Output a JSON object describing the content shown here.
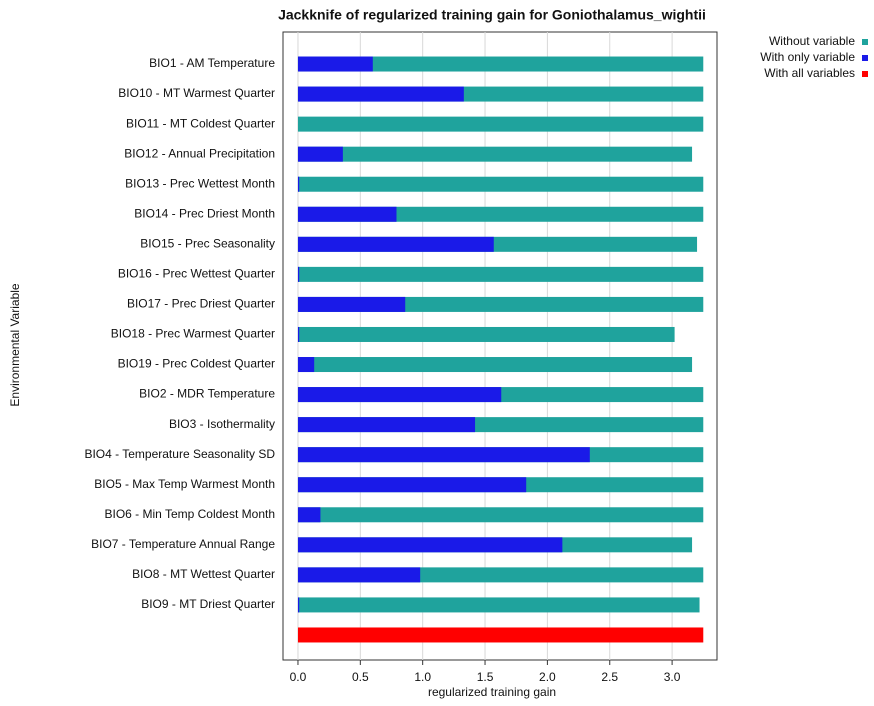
{
  "chart_data": {
    "type": "bar",
    "orientation": "horizontal",
    "title": "Jackknife of regularized training gain for Goniothalamus_wightii",
    "x_label": "regularized training gain",
    "y_label": "Environmental Variable",
    "categories": [
      "BIO1 - AM Temperature",
      "BIO10 - MT Warmest Quarter",
      "BIO11 - MT Coldest Quarter",
      "BIO12 - Annual Precipitation",
      "BIO13 - Prec Wettest Month",
      "BIO14 - Prec Driest Month",
      "BIO15 - Prec Seasonality",
      "BIO16 - Prec Wettest Quarter",
      "BIO17 - Prec Driest Quarter",
      "BIO18 - Prec Warmest Quarter",
      "BIO19 - Prec Coldest Quarter",
      "BIO2 - MDR Temperature",
      "BIO3 - Isothermality",
      "BIO4 - Temperature Seasonality SD",
      "BIO5 - Max Temp Warmest Month",
      "BIO6 - Min Temp Coldest Month",
      "BIO7 - Temperature Annual Range",
      "BIO8 - MT Wettest Quarter",
      "BIO9 - MT Driest Quarter",
      null
    ],
    "series": [
      {
        "name": "Without variable",
        "color": "#1fa39d",
        "values": [
          3.25,
          3.25,
          3.25,
          3.16,
          3.25,
          3.25,
          3.2,
          3.25,
          3.25,
          3.02,
          3.16,
          3.25,
          3.25,
          3.25,
          3.25,
          3.25,
          3.16,
          3.25,
          3.22,
          null
        ]
      },
      {
        "name": "With only variable",
        "color": "#1a1ae8",
        "values": [
          0.6,
          1.33,
          0.0,
          0.36,
          0.01,
          0.79,
          1.57,
          0.01,
          0.86,
          0.01,
          0.13,
          1.63,
          1.42,
          2.34,
          1.83,
          0.18,
          2.12,
          0.98,
          0.01,
          null
        ]
      },
      {
        "name": "With all variables",
        "color": "#ff0000",
        "values": [
          null,
          null,
          null,
          null,
          null,
          null,
          null,
          null,
          null,
          null,
          null,
          null,
          null,
          null,
          null,
          null,
          null,
          null,
          null,
          3.25
        ]
      }
    ],
    "xlim": [
      -0.12,
      3.36
    ],
    "xticks": [
      {
        "value": 0,
        "label": "0.0"
      },
      0.5,
      {
        "value": 1,
        "label": "1.0"
      },
      1.5,
      {
        "value": 2,
        "label": "2.0"
      },
      2.5,
      {
        "value": 3,
        "label": "3.0"
      }
    ],
    "grid": true,
    "legend": "top-right"
  }
}
